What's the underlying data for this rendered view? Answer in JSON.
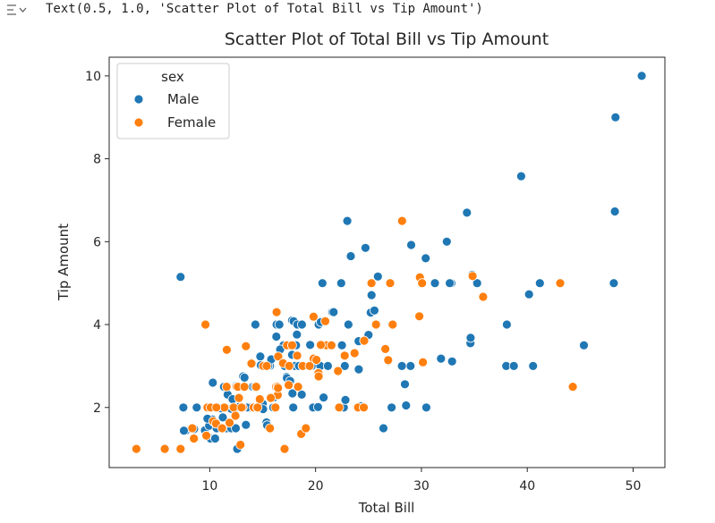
{
  "output": {
    "text": "Text(0.5, 1.0, 'Scatter Plot of Total Bill vs Tip Amount')",
    "icon": "output-expand-icon"
  },
  "chart_data": {
    "type": "scatter",
    "title": "Scatter Plot of Total Bill vs Tip Amount",
    "xlabel": "Total Bill",
    "ylabel": "Tip Amount",
    "xlim": [
      0.5,
      53
    ],
    "ylim": [
      0.55,
      10.45
    ],
    "xticks": [
      10,
      20,
      30,
      40,
      50
    ],
    "yticks": [
      2,
      4,
      6,
      8,
      10
    ],
    "grid": false,
    "legend": {
      "title": "sex",
      "placement": "top-left"
    },
    "series": [
      {
        "name": "Male",
        "color": "#1f77b4",
        "points": [
          [
            50.81,
            10.0
          ],
          [
            48.33,
            9.0
          ],
          [
            48.27,
            6.73
          ],
          [
            48.17,
            5.0
          ],
          [
            39.42,
            7.58
          ],
          [
            34.3,
            6.7
          ],
          [
            32.4,
            6.0
          ],
          [
            23.33,
            5.65
          ],
          [
            23.0,
            6.5
          ],
          [
            28.97,
            3.0
          ],
          [
            30.4,
            5.6
          ],
          [
            29.03,
            5.92
          ],
          [
            24.71,
            5.85
          ],
          [
            34.81,
            5.2
          ],
          [
            41.19,
            5.0
          ],
          [
            40.17,
            4.73
          ],
          [
            31.27,
            5.0
          ],
          [
            30.06,
            5.0
          ],
          [
            32.83,
            5.0
          ],
          [
            25.89,
            5.16
          ],
          [
            22.42,
            5.0
          ],
          [
            20.65,
            5.0
          ],
          [
            25.21,
            4.29
          ],
          [
            25.56,
            4.34
          ],
          [
            25.29,
            4.71
          ],
          [
            23.17,
            4.0
          ],
          [
            21.58,
            4.3
          ],
          [
            20.69,
            4.08
          ],
          [
            20.29,
            4.0
          ],
          [
            18.29,
            4.0
          ],
          [
            17.78,
            4.1
          ],
          [
            16.49,
            4.0
          ],
          [
            16.93,
            3.07
          ],
          [
            16.32,
            4.0
          ],
          [
            15.69,
            3.0
          ],
          [
            14.78,
            3.23
          ],
          [
            15.48,
            3.02
          ],
          [
            16.58,
            4.0
          ],
          [
            17.31,
            3.5
          ],
          [
            15.98,
            2.0
          ],
          [
            17.46,
            2.54
          ],
          [
            17.81,
            2.34
          ],
          [
            18.24,
            3.76
          ],
          [
            16.97,
            3.5
          ],
          [
            18.04,
            3.0
          ],
          [
            19.65,
            3.0
          ],
          [
            19.77,
            2.0
          ],
          [
            20.23,
            2.01
          ],
          [
            21.01,
            3.5
          ],
          [
            21.7,
            4.3
          ],
          [
            22.23,
            2.0
          ],
          [
            22.76,
            3.0
          ],
          [
            23.68,
            3.31
          ],
          [
            24.06,
            3.6
          ],
          [
            24.27,
            2.03
          ],
          [
            24.55,
            2.0
          ],
          [
            24.59,
            3.61
          ],
          [
            25.0,
            3.75
          ],
          [
            26.41,
            1.5
          ],
          [
            26.88,
            3.12
          ],
          [
            27.2,
            4.0
          ],
          [
            27.28,
            4.0
          ],
          [
            28.15,
            3.0
          ],
          [
            28.44,
            2.56
          ],
          [
            28.55,
            2.05
          ],
          [
            29.85,
            5.14
          ],
          [
            30.46,
            2.0
          ],
          [
            31.85,
            3.18
          ],
          [
            32.9,
            3.11
          ],
          [
            32.68,
            5.0
          ],
          [
            34.63,
            3.55
          ],
          [
            34.65,
            3.68
          ],
          [
            35.26,
            5.0
          ],
          [
            38.01,
            3.0
          ],
          [
            38.07,
            4.0
          ],
          [
            38.73,
            3.0
          ],
          [
            40.55,
            3.0
          ],
          [
            45.35,
            3.5
          ],
          [
            7.25,
            5.15
          ],
          [
            7.51,
            2.0
          ],
          [
            7.74,
            1.44
          ],
          [
            8.52,
            1.48
          ],
          [
            8.77,
            2.0
          ],
          [
            9.55,
            1.45
          ],
          [
            9.68,
            1.32
          ],
          [
            9.94,
            1.56
          ],
          [
            10.07,
            1.25
          ],
          [
            10.27,
            1.71
          ],
          [
            10.29,
            2.6
          ],
          [
            10.33,
            2.0
          ],
          [
            10.34,
            1.66
          ],
          [
            10.51,
            1.25
          ],
          [
            10.63,
            2.0
          ],
          [
            10.65,
            1.5
          ],
          [
            11.02,
            1.98
          ],
          [
            11.24,
            1.76
          ],
          [
            11.35,
            2.5
          ],
          [
            11.59,
            1.5
          ],
          [
            11.61,
            3.39
          ],
          [
            11.69,
            2.31
          ],
          [
            12.02,
            1.97
          ],
          [
            12.03,
            1.5
          ],
          [
            12.16,
            2.2
          ],
          [
            12.43,
            1.8
          ],
          [
            12.46,
            1.5
          ],
          [
            12.48,
            2.52
          ],
          [
            12.6,
            1.0
          ],
          [
            12.69,
            2.0
          ],
          [
            13.0,
            2.0
          ],
          [
            13.03,
            2.0
          ],
          [
            13.13,
            2.0
          ],
          [
            13.16,
            2.75
          ],
          [
            13.28,
            2.72
          ],
          [
            13.37,
            2.0
          ],
          [
            13.42,
            1.58
          ],
          [
            13.81,
            2.0
          ],
          [
            13.94,
            3.06
          ],
          [
            14.07,
            2.5
          ],
          [
            14.26,
            2.5
          ],
          [
            14.31,
            4.0
          ],
          [
            14.52,
            2.0
          ],
          [
            15.01,
            2.09
          ],
          [
            15.04,
            1.96
          ],
          [
            15.36,
            1.64
          ],
          [
            15.42,
            1.57
          ],
          [
            15.53,
            3.0
          ],
          [
            15.77,
            2.23
          ],
          [
            15.81,
            3.16
          ],
          [
            16.0,
            2.0
          ],
          [
            16.04,
            2.24
          ],
          [
            16.29,
            3.71
          ],
          [
            16.47,
            3.23
          ],
          [
            16.66,
            3.4
          ],
          [
            17.07,
            3.0
          ],
          [
            17.26,
            2.74
          ],
          [
            17.29,
            2.71
          ],
          [
            17.47,
            3.5
          ],
          [
            17.51,
            3.0
          ],
          [
            17.59,
            2.64
          ],
          [
            17.78,
            3.27
          ],
          [
            17.89,
            2.0
          ],
          [
            17.92,
            4.08
          ],
          [
            18.15,
            3.5
          ],
          [
            18.28,
            4.0
          ],
          [
            18.35,
            2.5
          ],
          [
            18.43,
            3.0
          ],
          [
            18.69,
            2.31
          ],
          [
            18.71,
            4.0
          ],
          [
            18.78,
            3.0
          ],
          [
            19.08,
            1.5
          ],
          [
            19.44,
            3.0
          ],
          [
            19.49,
            3.51
          ],
          [
            19.81,
            4.19
          ],
          [
            20.08,
            3.15
          ],
          [
            20.27,
            2.83
          ],
          [
            20.45,
            3.0
          ],
          [
            20.49,
            4.06
          ],
          [
            20.76,
            2.24
          ],
          [
            20.9,
            3.5
          ],
          [
            21.16,
            3.0
          ],
          [
            22.49,
            3.5
          ],
          [
            22.67,
            2.0
          ],
          [
            22.82,
            2.18
          ],
          [
            23.1,
            4.0
          ],
          [
            24.01,
            2.0
          ],
          [
            24.08,
            2.92
          ],
          [
            27.18,
            2.0
          ],
          [
            12.74,
            2.01
          ],
          [
            7.56,
            1.44
          ],
          [
            9.78,
            1.73
          ],
          [
            13.51,
            2.0
          ],
          [
            14.83,
            3.02
          ]
        ]
      },
      {
        "name": "Female",
        "color": "#ff7f0e",
        "points": [
          [
            3.07,
            1.0
          ],
          [
            5.75,
            1.0
          ],
          [
            7.25,
            1.0
          ],
          [
            8.35,
            1.5
          ],
          [
            8.51,
            1.25
          ],
          [
            9.6,
            4.0
          ],
          [
            9.78,
            2.0
          ],
          [
            10.09,
            2.0
          ],
          [
            10.33,
            1.67
          ],
          [
            10.59,
            1.61
          ],
          [
            10.65,
            2.0
          ],
          [
            11.17,
            1.5
          ],
          [
            11.38,
            2.0
          ],
          [
            11.59,
            2.5
          ],
          [
            11.87,
            1.63
          ],
          [
            12.26,
            2.0
          ],
          [
            12.54,
            2.5
          ],
          [
            12.66,
            2.5
          ],
          [
            12.76,
            2.23
          ],
          [
            12.9,
            1.1
          ],
          [
            13.13,
            2.0
          ],
          [
            13.27,
            2.5
          ],
          [
            13.42,
            3.48
          ],
          [
            13.94,
            3.06
          ],
          [
            14.15,
            2.0
          ],
          [
            14.48,
            2.0
          ],
          [
            14.73,
            2.2
          ],
          [
            15.06,
            3.0
          ],
          [
            15.38,
            3.0
          ],
          [
            15.69,
            1.5
          ],
          [
            16.27,
            2.5
          ],
          [
            16.32,
            4.3
          ],
          [
            16.4,
            2.5
          ],
          [
            16.43,
            2.3
          ],
          [
            16.45,
            2.47
          ],
          [
            16.47,
            3.23
          ],
          [
            16.93,
            3.07
          ],
          [
            17.07,
            1.0
          ],
          [
            17.31,
            3.5
          ],
          [
            17.51,
            3.0
          ],
          [
            17.78,
            3.5
          ],
          [
            18.26,
            3.25
          ],
          [
            18.64,
            1.36
          ],
          [
            19.08,
            1.5
          ],
          [
            19.81,
            4.19
          ],
          [
            19.82,
            3.18
          ],
          [
            20.27,
            2.83
          ],
          [
            20.92,
            4.08
          ],
          [
            21.01,
            3.5
          ],
          [
            22.23,
            2.0
          ],
          [
            22.75,
            3.25
          ],
          [
            24.01,
            2.0
          ],
          [
            24.59,
            3.61
          ],
          [
            25.71,
            4.0
          ],
          [
            26.86,
            3.14
          ],
          [
            27.05,
            5.0
          ],
          [
            28.17,
            6.5
          ],
          [
            29.85,
            5.14
          ],
          [
            30.06,
            5.0
          ],
          [
            34.83,
            5.17
          ],
          [
            35.83,
            4.67
          ],
          [
            43.11,
            5.0
          ],
          [
            44.3,
            2.5
          ],
          [
            21.5,
            3.5
          ],
          [
            13.0,
            2.0
          ],
          [
            14.39,
            2.5
          ],
          [
            11.61,
            3.39
          ],
          [
            20.29,
            2.75
          ],
          [
            22.12,
            2.88
          ],
          [
            24.55,
            2.0
          ],
          [
            26.59,
            3.41
          ],
          [
            29.8,
            4.2
          ],
          [
            30.14,
            3.09
          ],
          [
            27.28,
            4.0
          ],
          [
            25.28,
            5.0
          ],
          [
            18.78,
            3.0
          ],
          [
            17.46,
            2.54
          ],
          [
            16.21,
            2.0
          ],
          [
            15.77,
            2.23
          ],
          [
            20.49,
            3.51
          ],
          [
            10.63,
            2.0
          ],
          [
            9.68,
            1.32
          ],
          [
            14.52,
            2.0
          ],
          [
            12.43,
            1.8
          ],
          [
            19.44,
            3.0
          ],
          [
            20.08,
            3.15
          ],
          [
            18.35,
            2.5
          ],
          [
            23.68,
            3.31
          ]
        ]
      }
    ]
  }
}
